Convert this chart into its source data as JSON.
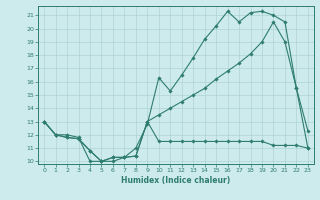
{
  "line1_x": [
    0,
    1,
    2,
    3,
    4,
    5,
    6,
    7,
    8,
    9,
    10,
    11,
    12,
    13,
    14,
    15,
    16,
    17,
    18,
    19,
    20,
    21,
    22,
    23
  ],
  "line1_y": [
    13,
    12,
    12,
    11.8,
    10,
    10,
    10,
    10.3,
    11,
    12.8,
    16.3,
    15.3,
    16.5,
    17.8,
    19.2,
    20.2,
    21.3,
    20.5,
    21.2,
    21.3,
    21.0,
    20.5,
    15.5,
    12.3
  ],
  "line2_x": [
    0,
    1,
    2,
    3,
    4,
    5,
    6,
    7,
    8,
    9,
    10,
    11,
    12,
    13,
    14,
    15,
    16,
    17,
    18,
    19,
    20,
    21,
    22,
    23
  ],
  "line2_y": [
    13,
    12,
    11.8,
    11.7,
    10.8,
    10,
    10.3,
    10.3,
    10.4,
    13,
    13.5,
    14.0,
    14.5,
    15.0,
    15.5,
    16.2,
    16.8,
    17.4,
    18.1,
    19.0,
    20.5,
    19.0,
    15.5,
    11
  ],
  "line3_x": [
    0,
    1,
    2,
    3,
    4,
    5,
    6,
    7,
    8,
    9,
    10,
    11,
    12,
    13,
    14,
    15,
    16,
    17,
    18,
    19,
    20,
    21,
    22,
    23
  ],
  "line3_y": [
    13,
    12,
    11.8,
    11.7,
    10.8,
    10,
    10.3,
    10.3,
    10.4,
    13,
    11.5,
    11.5,
    11.5,
    11.5,
    11.5,
    11.5,
    11.5,
    11.5,
    11.5,
    11.5,
    11.2,
    11.2,
    11.2,
    11.0
  ],
  "color": "#2e7d6e",
  "bg_color": "#cdeaec",
  "grid_color": "#afd4d6",
  "xlabel": "Humidex (Indice chaleur)",
  "ylim": [
    9.8,
    21.7
  ],
  "xlim": [
    -0.5,
    23.5
  ],
  "yticks": [
    10,
    11,
    12,
    13,
    14,
    15,
    16,
    17,
    18,
    19,
    20,
    21
  ],
  "xticks": [
    0,
    1,
    2,
    3,
    4,
    5,
    6,
    7,
    8,
    9,
    10,
    11,
    12,
    13,
    14,
    15,
    16,
    17,
    18,
    19,
    20,
    21,
    22,
    23
  ]
}
